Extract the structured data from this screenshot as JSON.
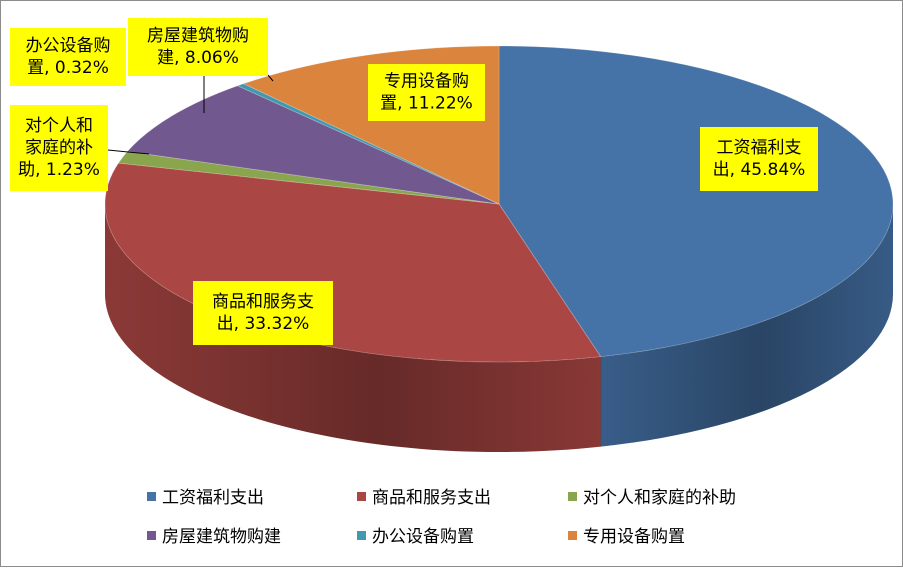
{
  "chart_data": {
    "type": "pie",
    "style": "3d",
    "title": "",
    "slices": [
      {
        "name": "工资福利支出",
        "value": 45.84,
        "color": "#4572A7",
        "label": "工资福利支出, 45.84%"
      },
      {
        "name": "商品和服务支出",
        "value": 33.32,
        "color": "#AA4643",
        "label": "商品和服务支出, 33.32%"
      },
      {
        "name": "对个人和家庭的补助",
        "value": 1.23,
        "color": "#89A54E",
        "label": "对个人和家庭的补助, 1.23%"
      },
      {
        "name": "房屋建筑物购建",
        "value": 8.06,
        "color": "#71588F",
        "label": "房屋建筑物购建, 8.06%"
      },
      {
        "name": "办公设备购置",
        "value": 0.32,
        "color": "#4198AF",
        "label": "办公设备购置, 0.32%"
      },
      {
        "name": "专用设备购置",
        "value": 11.22,
        "color": "#DB843D",
        "label": "专用设备购置, 11.22%"
      }
    ],
    "labels": [
      {
        "lines": [
          "工资福利支",
          "出, 45.84%"
        ]
      },
      {
        "lines": [
          "商品和服务支",
          "出, 33.32%"
        ]
      },
      {
        "lines": [
          "对个人和",
          "家庭的补",
          "助, 1.23%"
        ]
      },
      {
        "lines": [
          "房屋建筑物购",
          "建, 8.06%"
        ]
      },
      {
        "lines": [
          "办公设备购",
          "置, 0.32%"
        ]
      },
      {
        "lines": [
          "专用设备购",
          "置, 11.22%"
        ]
      }
    ],
    "legend_position": "bottom",
    "label_background": "#FFFF00"
  }
}
